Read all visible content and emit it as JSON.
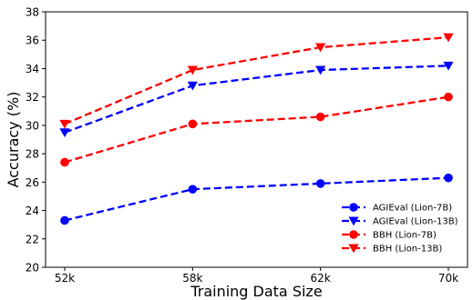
{
  "chart_data": {
    "type": "line",
    "title": "",
    "xlabel": "Training Data Size",
    "ylabel": "Accuracy (%)",
    "categories": [
      "52k",
      "58k",
      "62k",
      "70k"
    ],
    "ylim": [
      20,
      38
    ],
    "yticks": [
      "20",
      "22",
      "24",
      "26",
      "28",
      "30",
      "32",
      "34",
      "36",
      "38"
    ],
    "grid": false,
    "legend_position": "lower-right",
    "series": [
      {
        "name": "AGIEval (Lion-7B)",
        "values": [
          23.3,
          25.5,
          25.9,
          26.3
        ],
        "color": "#0000ff",
        "marker": "circle"
      },
      {
        "name": "AGIEval (Lion-13B)",
        "values": [
          29.5,
          32.8,
          33.9,
          34.2
        ],
        "color": "#0000ff",
        "marker": "triangle-down"
      },
      {
        "name": "BBH (Lion-7B)",
        "values": [
          27.4,
          30.1,
          30.6,
          32.0
        ],
        "color": "#ff0000",
        "marker": "circle"
      },
      {
        "name": "BBH (Lion-13B)",
        "values": [
          30.1,
          33.9,
          35.5,
          36.2
        ],
        "color": "#ff0000",
        "marker": "triangle-down"
      }
    ]
  }
}
